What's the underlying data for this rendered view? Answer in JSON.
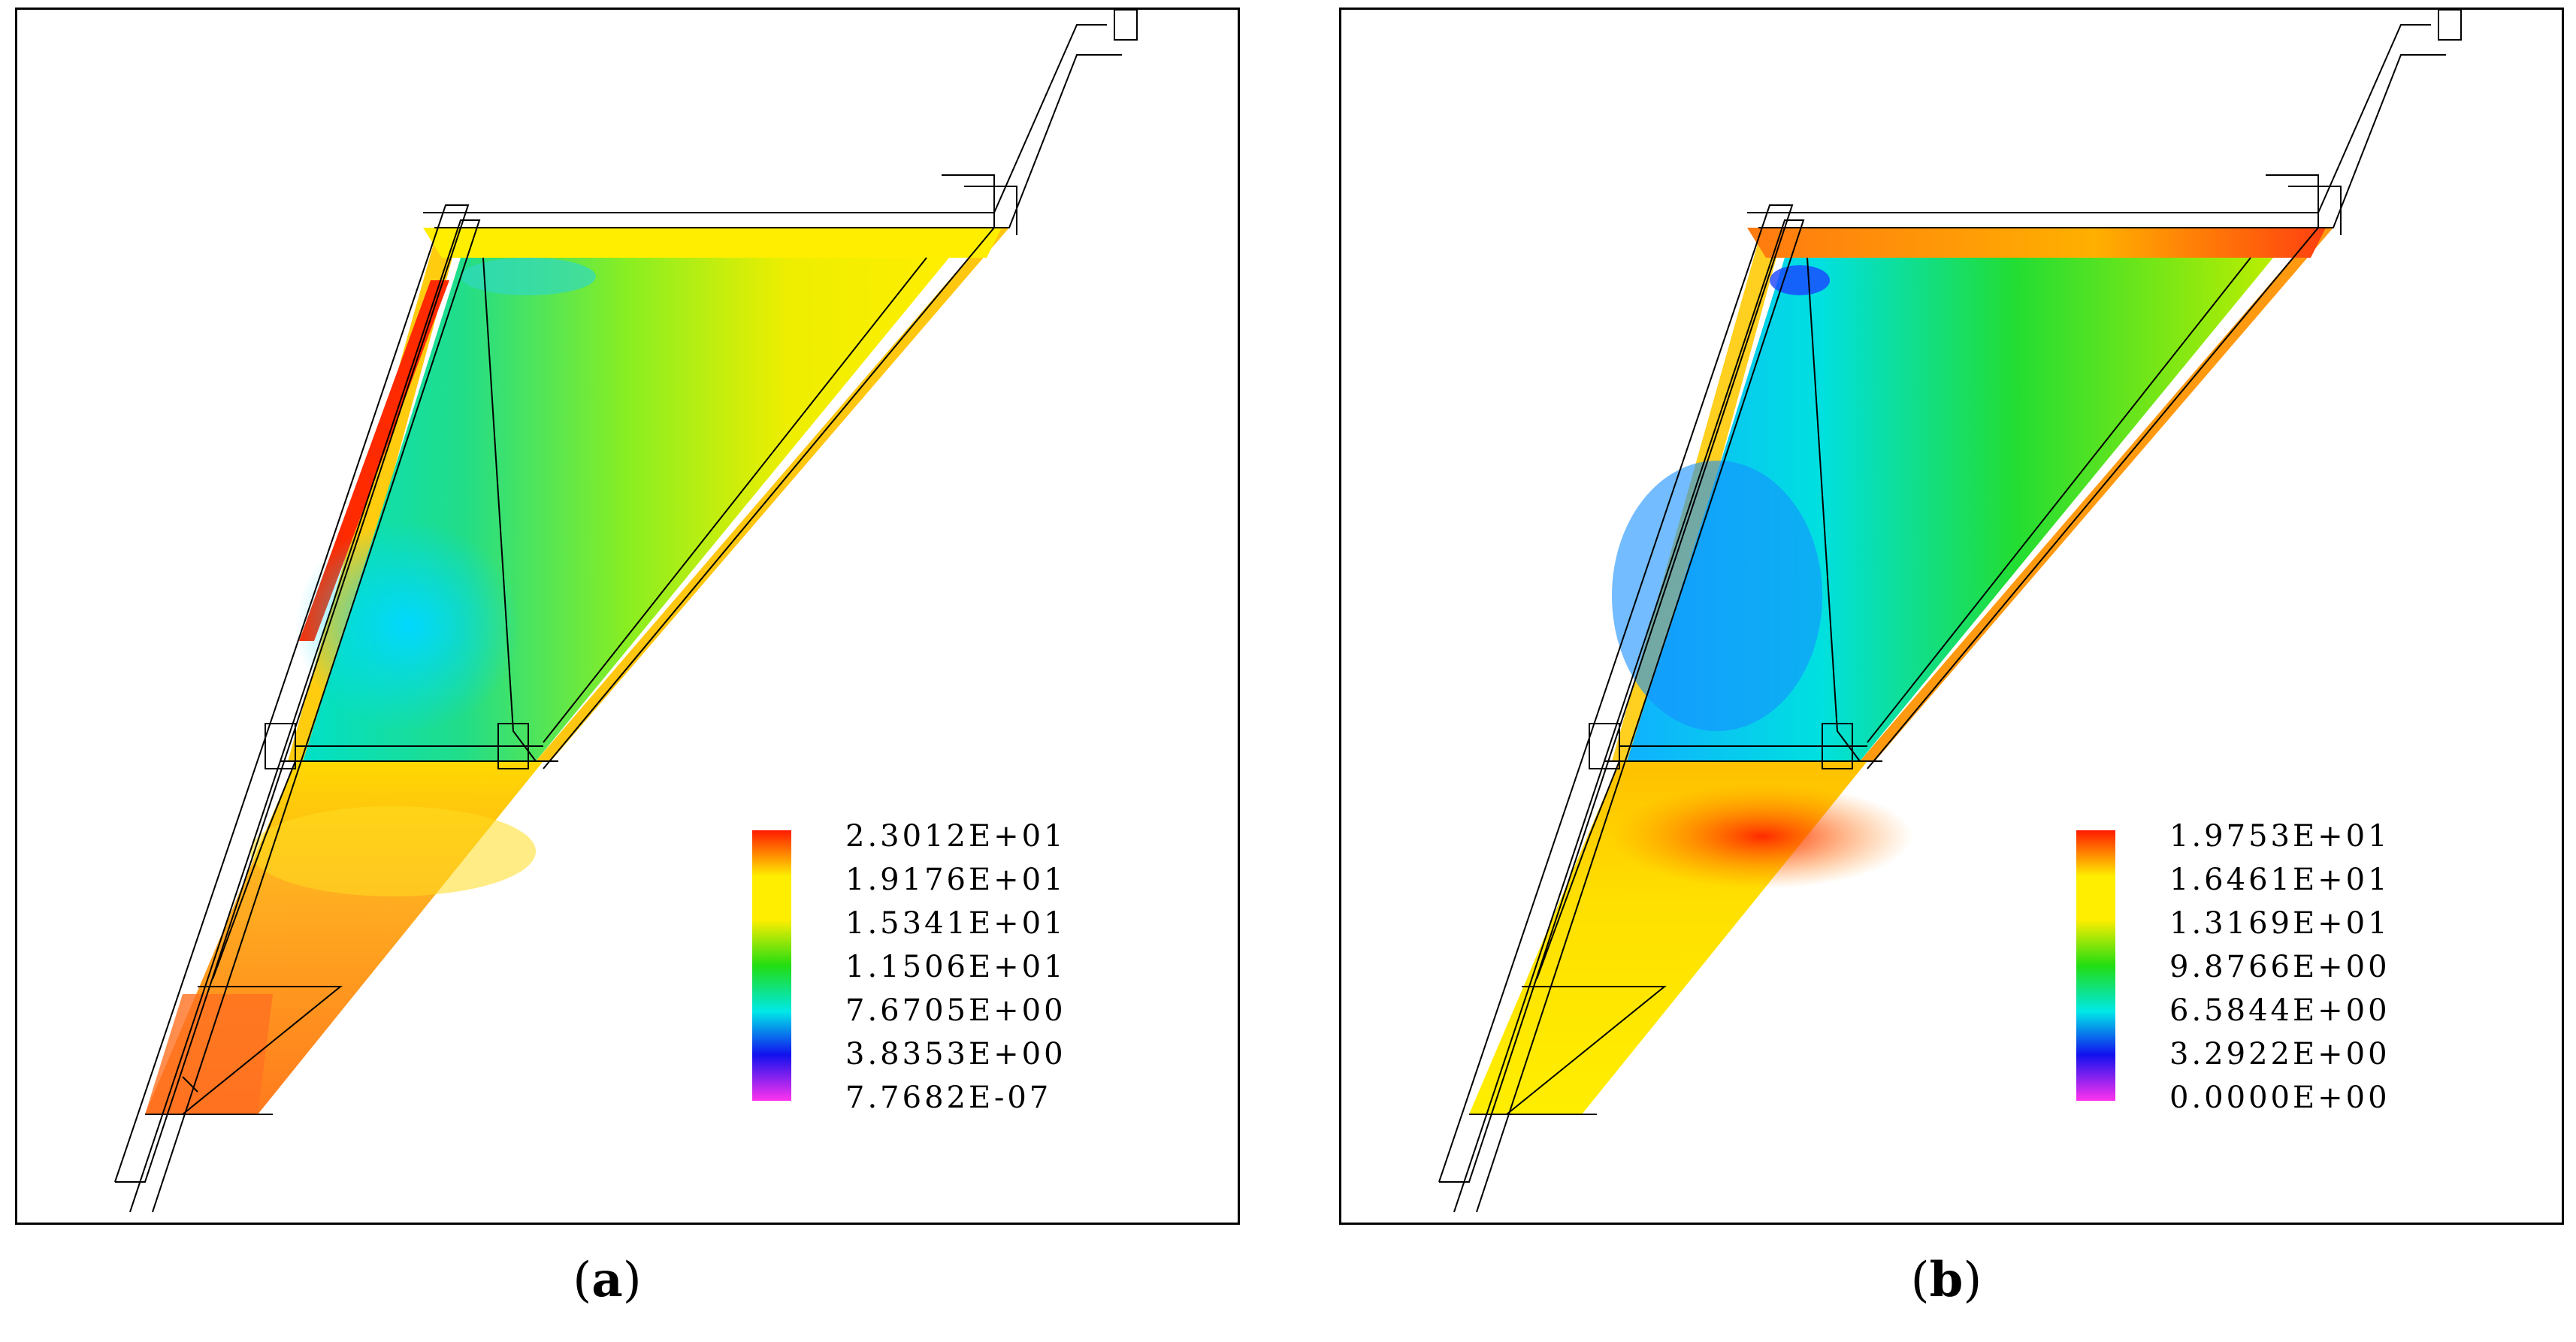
{
  "panels": [
    {
      "id": "a",
      "caption_letter": "a",
      "legend": {
        "labels": [
          "2.3012E+01",
          "1.9176E+01",
          "1.5341E+01",
          "1.1506E+01",
          "7.6705E+00",
          "3.8353E+00",
          "7.7682E-07"
        ],
        "colors": [
          "#ff2200",
          "#ffee00",
          "#ffee00",
          "#22dd11",
          "#00e8e8",
          "#1111ee",
          "#ff33ee"
        ]
      }
    },
    {
      "id": "b",
      "caption_letter": "b",
      "legend": {
        "labels": [
          "1.9753E+01",
          "1.6461E+01",
          "1.3169E+01",
          "9.8766E+00",
          "6.5844E+00",
          "3.2922E+00",
          "0.0000E+00"
        ],
        "colors": [
          "#ff2200",
          "#ffee00",
          "#ffee00",
          "#22dd11",
          "#00e8e8",
          "#1111ee",
          "#ff33ee"
        ]
      }
    }
  ],
  "captions": {
    "a": {
      "open": "(",
      "letter": "a",
      "close": ")"
    },
    "b": {
      "open": "(",
      "letter": "b",
      "close": ")"
    }
  }
}
